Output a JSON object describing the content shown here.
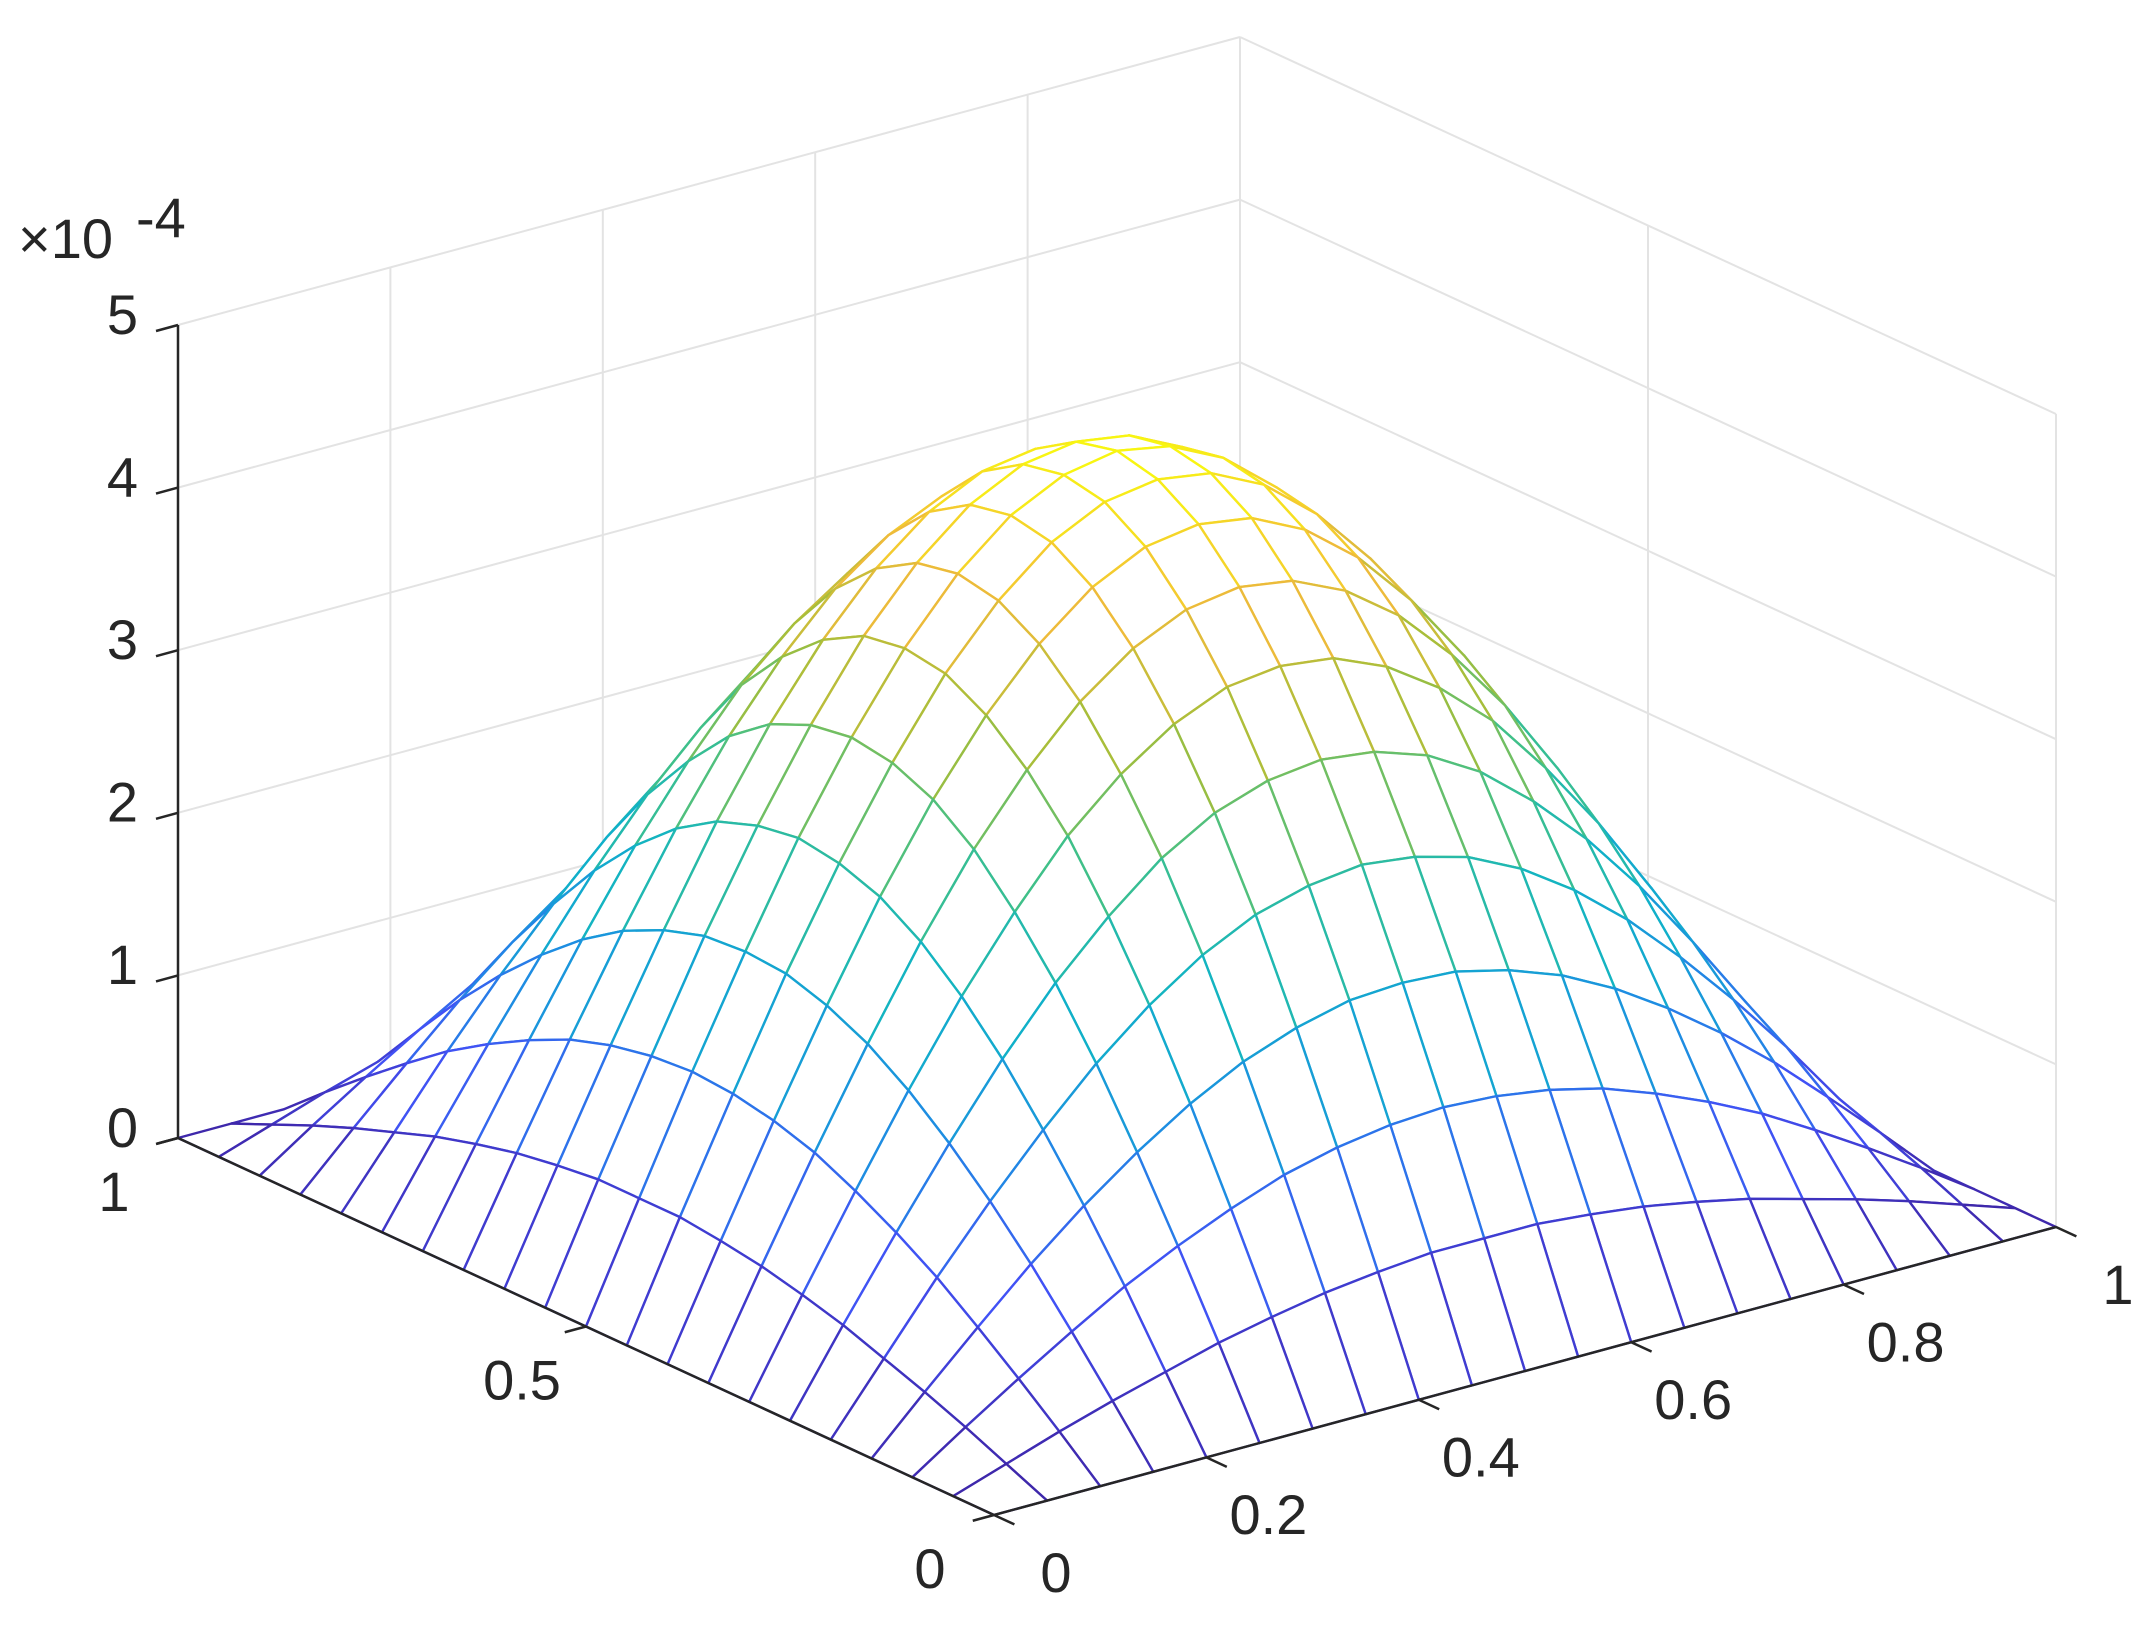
{
  "chart_data": {
    "type": "mesh",
    "x": [
      0,
      0.05,
      0.1,
      0.15,
      0.2,
      0.25,
      0.3,
      0.35,
      0.4,
      0.45,
      0.5,
      0.55,
      0.6,
      0.65,
      0.7,
      0.75,
      0.8,
      0.85,
      0.9,
      0.95,
      1
    ],
    "y": [
      0,
      0.05,
      0.1,
      0.15,
      0.2,
      0.25,
      0.3,
      0.35,
      0.4,
      0.45,
      0.5,
      0.55,
      0.6,
      0.65,
      0.7,
      0.75,
      0.8,
      0.85,
      0.9,
      0.95,
      1
    ],
    "z": [
      [
        0,
        0,
        0,
        0,
        0,
        0,
        0,
        0,
        0,
        0,
        0,
        0,
        0,
        0,
        0,
        0,
        0,
        0,
        0,
        0,
        0
      ],
      [
        0,
        0.11,
        0.22,
        0.32,
        0.41,
        0.5,
        0.57,
        0.63,
        0.67,
        0.7,
        0.7,
        0.7,
        0.67,
        0.63,
        0.57,
        0.5,
        0.41,
        0.32,
        0.22,
        0.11,
        0
      ],
      [
        0,
        0.22,
        0.43,
        0.63,
        0.82,
        0.98,
        1.12,
        1.24,
        1.32,
        1.37,
        1.39,
        1.37,
        1.32,
        1.24,
        1.12,
        0.98,
        0.82,
        0.63,
        0.43,
        0.22,
        0
      ],
      [
        0,
        0.32,
        0.63,
        0.93,
        1.2,
        1.44,
        1.65,
        1.82,
        1.94,
        2.02,
        2.04,
        2.02,
        1.94,
        1.82,
        1.65,
        1.44,
        1.2,
        0.93,
        0.63,
        0.32,
        0
      ],
      [
        0,
        0.41,
        0.82,
        1.2,
        1.55,
        1.87,
        2.14,
        2.36,
        2.52,
        2.61,
        2.65,
        2.61,
        2.52,
        2.36,
        2.14,
        1.87,
        1.55,
        1.2,
        0.82,
        0.41,
        0
      ],
      [
        0,
        0.5,
        0.98,
        1.44,
        1.87,
        2.25,
        2.57,
        2.84,
        3.03,
        3.14,
        3.18,
        3.14,
        3.03,
        2.84,
        2.57,
        2.25,
        1.87,
        1.44,
        0.98,
        0.5,
        0
      ],
      [
        0,
        0.57,
        1.12,
        1.65,
        2.14,
        2.57,
        2.95,
        3.24,
        3.46,
        3.6,
        3.64,
        3.6,
        3.46,
        3.24,
        2.95,
        2.57,
        2.14,
        1.65,
        1.12,
        0.57,
        0
      ],
      [
        0,
        0.63,
        1.24,
        1.82,
        2.36,
        2.84,
        3.24,
        3.57,
        3.81,
        3.96,
        4.01,
        3.96,
        3.81,
        3.57,
        3.24,
        2.84,
        2.36,
        1.82,
        1.24,
        0.63,
        0
      ],
      [
        0,
        0.67,
        1.32,
        1.94,
        2.52,
        3.03,
        3.46,
        3.81,
        4.07,
        4.23,
        4.28,
        4.23,
        4.07,
        3.81,
        3.46,
        3.03,
        2.52,
        1.94,
        1.32,
        0.67,
        0
      ],
      [
        0,
        0.7,
        1.37,
        2.02,
        2.61,
        3.14,
        3.6,
        3.96,
        4.23,
        4.39,
        4.44,
        4.39,
        4.23,
        3.96,
        3.6,
        3.14,
        2.61,
        2.02,
        1.37,
        0.7,
        0
      ],
      [
        0,
        0.7,
        1.39,
        2.04,
        2.65,
        3.18,
        3.64,
        4.01,
        4.28,
        4.44,
        4.5,
        4.44,
        4.28,
        4.01,
        3.64,
        3.18,
        2.65,
        2.04,
        1.39,
        0.7,
        0
      ],
      [
        0,
        0.7,
        1.37,
        2.02,
        2.61,
        3.14,
        3.6,
        3.96,
        4.23,
        4.39,
        4.44,
        4.39,
        4.23,
        3.96,
        3.6,
        3.14,
        2.61,
        2.02,
        1.37,
        0.7,
        0
      ],
      [
        0,
        0.67,
        1.32,
        1.94,
        2.52,
        3.03,
        3.46,
        3.81,
        4.07,
        4.23,
        4.28,
        4.23,
        4.07,
        3.81,
        3.46,
        3.03,
        2.52,
        1.94,
        1.32,
        0.67,
        0
      ],
      [
        0,
        0.63,
        1.24,
        1.82,
        2.36,
        2.84,
        3.24,
        3.57,
        3.81,
        3.96,
        4.01,
        3.96,
        3.81,
        3.57,
        3.24,
        2.84,
        2.36,
        1.82,
        1.24,
        0.63,
        0
      ],
      [
        0,
        0.57,
        1.12,
        1.65,
        2.14,
        2.57,
        2.95,
        3.24,
        3.46,
        3.6,
        3.64,
        3.6,
        3.46,
        3.24,
        2.95,
        2.57,
        2.14,
        1.65,
        1.12,
        0.57,
        0
      ],
      [
        0,
        0.5,
        0.98,
        1.44,
        1.87,
        2.25,
        2.57,
        2.84,
        3.03,
        3.14,
        3.18,
        3.14,
        3.03,
        2.84,
        2.57,
        2.25,
        1.87,
        1.44,
        0.98,
        0.5,
        0
      ],
      [
        0,
        0.41,
        0.82,
        1.2,
        1.55,
        1.87,
        2.14,
        2.36,
        2.52,
        2.61,
        2.65,
        2.61,
        2.52,
        2.36,
        2.14,
        1.87,
        1.55,
        1.2,
        0.82,
        0.41,
        0
      ],
      [
        0,
        0.32,
        0.63,
        0.93,
        1.2,
        1.44,
        1.65,
        1.82,
        1.94,
        2.02,
        2.04,
        2.02,
        1.94,
        1.82,
        1.65,
        1.44,
        1.2,
        0.93,
        0.63,
        0.32,
        0
      ],
      [
        0,
        0.22,
        0.43,
        0.63,
        0.82,
        0.98,
        1.12,
        1.24,
        1.32,
        1.37,
        1.39,
        1.37,
        1.32,
        1.24,
        1.12,
        0.98,
        0.82,
        0.63,
        0.43,
        0.22,
        0
      ],
      [
        0,
        0.11,
        0.22,
        0.32,
        0.41,
        0.5,
        0.57,
        0.63,
        0.67,
        0.7,
        0.7,
        0.7,
        0.67,
        0.63,
        0.57,
        0.5,
        0.41,
        0.32,
        0.22,
        0.11,
        0
      ],
      [
        0,
        0,
        0,
        0,
        0,
        0,
        0,
        0,
        0,
        0,
        0,
        0,
        0,
        0,
        0,
        0,
        0,
        0,
        0,
        0,
        0
      ]
    ],
    "xlim": [
      0,
      1
    ],
    "ylim": [
      0,
      1
    ],
    "zlim": [
      0,
      5
    ],
    "xticks": [
      0,
      0.2,
      0.4,
      0.6,
      0.8,
      1
    ],
    "yticks": [
      0,
      0.5,
      1
    ],
    "zticks": [
      0,
      1,
      2,
      3,
      4,
      5
    ],
    "z_multiplier": {
      "base": "×10",
      "exponent": "-4"
    },
    "grid": true,
    "colormap": [
      "#3e26a8",
      "#4250f5",
      "#1e8ce3",
      "#0fb3c7",
      "#3dc08c",
      "#a4be3a",
      "#f3bb3a",
      "#f9fb0e"
    ]
  }
}
